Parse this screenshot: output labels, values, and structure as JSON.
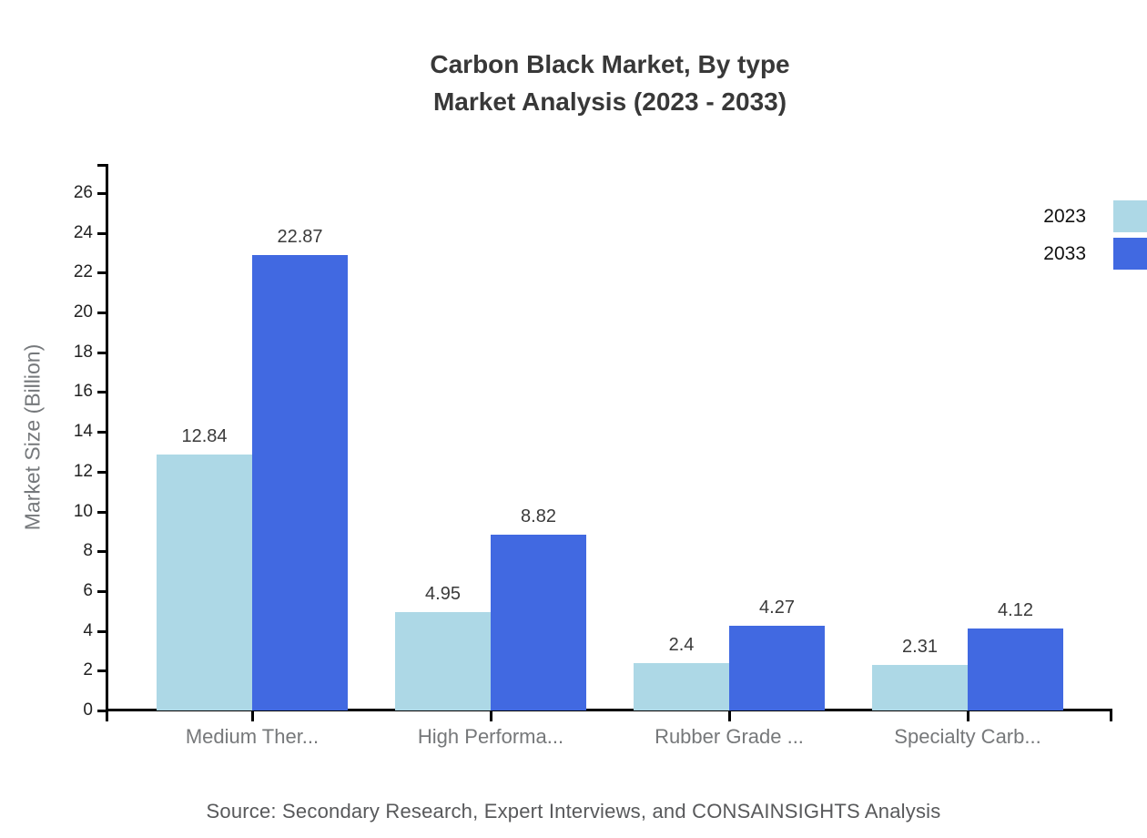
{
  "title": {
    "line1": "Carbon Black Market, By type",
    "line2": "Market Analysis (2023 - 2033)"
  },
  "y_axis_title": "Market Size (Billion)",
  "source": "Source: Secondary Research, Expert Interviews, and CONSAINSIGHTS Analysis",
  "legend": {
    "items": [
      {
        "label": "2023",
        "color": "#ADD8E6"
      },
      {
        "label": "2033",
        "color": "#4169E1"
      }
    ]
  },
  "colors": {
    "series_2023": "#ADD8E6",
    "series_2033": "#4169E1",
    "axis": "#000000",
    "title_text": "#383838",
    "value_label_text": "#3A3A3A",
    "category_text": "#76787A",
    "tick_label_text": "#222222",
    "y_title_text": "#75787B",
    "source_text": "#58595B"
  },
  "chart_data": {
    "type": "bar",
    "title": "Carbon Black Market, By type Market Analysis (2023 - 2033)",
    "categories": [
      "Medium Ther...",
      "High Performa...",
      "Rubber Grade ...",
      "Specialty Carb..."
    ],
    "series": [
      {
        "name": "2023",
        "values": [
          12.84,
          4.95,
          2.4,
          2.31
        ]
      },
      {
        "name": "2033",
        "values": [
          22.87,
          8.82,
          4.27,
          4.12
        ]
      }
    ],
    "value_labels": [
      "12.84",
      "4.95",
      "2.4",
      "2.31",
      "22.87",
      "8.82",
      "4.27",
      "4.12"
    ],
    "xlabel": "",
    "ylabel": "Market Size (Billion)",
    "ylim": [
      0,
      27.5
    ],
    "yticks": [
      0,
      2,
      4,
      6,
      8,
      10,
      12,
      14,
      16,
      18,
      20,
      22,
      24,
      26
    ],
    "grid": false,
    "legend_position": "top-right",
    "bar_value_labels_shown": true
  }
}
